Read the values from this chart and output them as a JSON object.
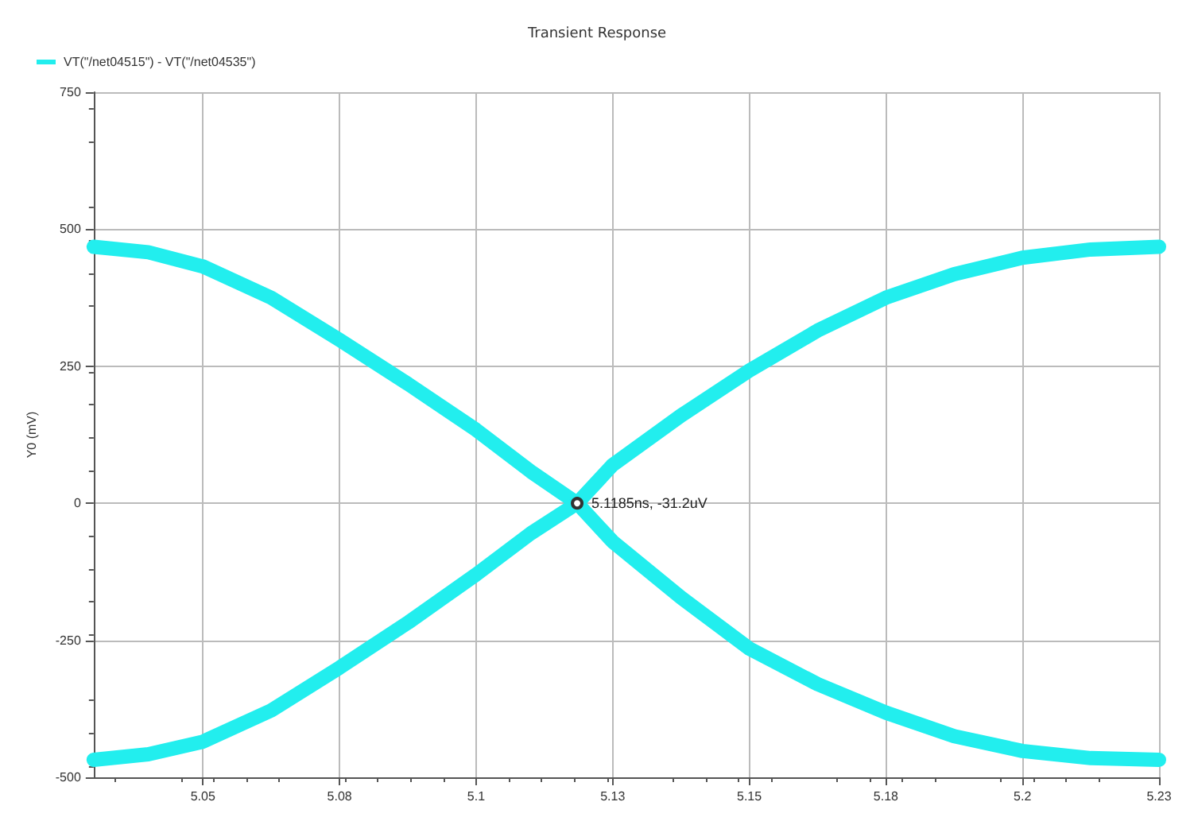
{
  "chart_data": {
    "type": "line",
    "title": "Transient Response",
    "ylabel": "Y0 (mV)",
    "legend": "top left",
    "grid": true,
    "line_style": "solid",
    "xlim": [
      5.03,
      5.225
    ],
    "ylim": [
      -500,
      750
    ],
    "xticks": [
      5.05,
      {
        "value": 5.075,
        "label": "5.08"
      },
      5.1,
      {
        "value": 5.125,
        "label": "5.13"
      },
      5.15,
      {
        "value": 5.175,
        "label": "5.18"
      },
      5.2,
      {
        "value": 5.225,
        "label": "5.23"
      }
    ],
    "yticks": [
      -500,
      -250,
      0,
      250,
      500,
      750
    ],
    "annotations": [
      {
        "text": "5.1185ns, -31.2uV",
        "x": 5.1185,
        "y": 0
      }
    ],
    "series": [
      {
        "name": "VT(\"/net04515\") - VT(\"/net04535\")",
        "color": "#22eeee",
        "x": [
          5.03,
          5.04,
          5.05,
          5.0625,
          5.075,
          5.0875,
          5.1,
          5.11,
          5.1185,
          5.125,
          5.1375,
          5.15,
          5.1625,
          5.175,
          5.1875,
          5.2,
          5.2125,
          5.225
        ],
        "values": [
          468,
          458,
          432,
          375,
          298,
          218,
          134,
          58,
          0,
          -70,
          -172,
          -265,
          -330,
          -382,
          -425,
          -452,
          -465,
          -468
        ]
      },
      {
        "color": "#22eeee",
        "x": [
          5.03,
          5.04,
          5.05,
          5.0625,
          5.075,
          5.0875,
          5.1,
          5.11,
          5.1185,
          5.125,
          5.1375,
          5.15,
          5.1625,
          5.175,
          5.1875,
          5.2,
          5.2125,
          5.225
        ],
        "values": [
          -468,
          -458,
          -435,
          -378,
          -300,
          -218,
          -130,
          -55,
          0,
          70,
          160,
          242,
          315,
          375,
          418,
          448,
          463,
          468
        ]
      }
    ]
  }
}
